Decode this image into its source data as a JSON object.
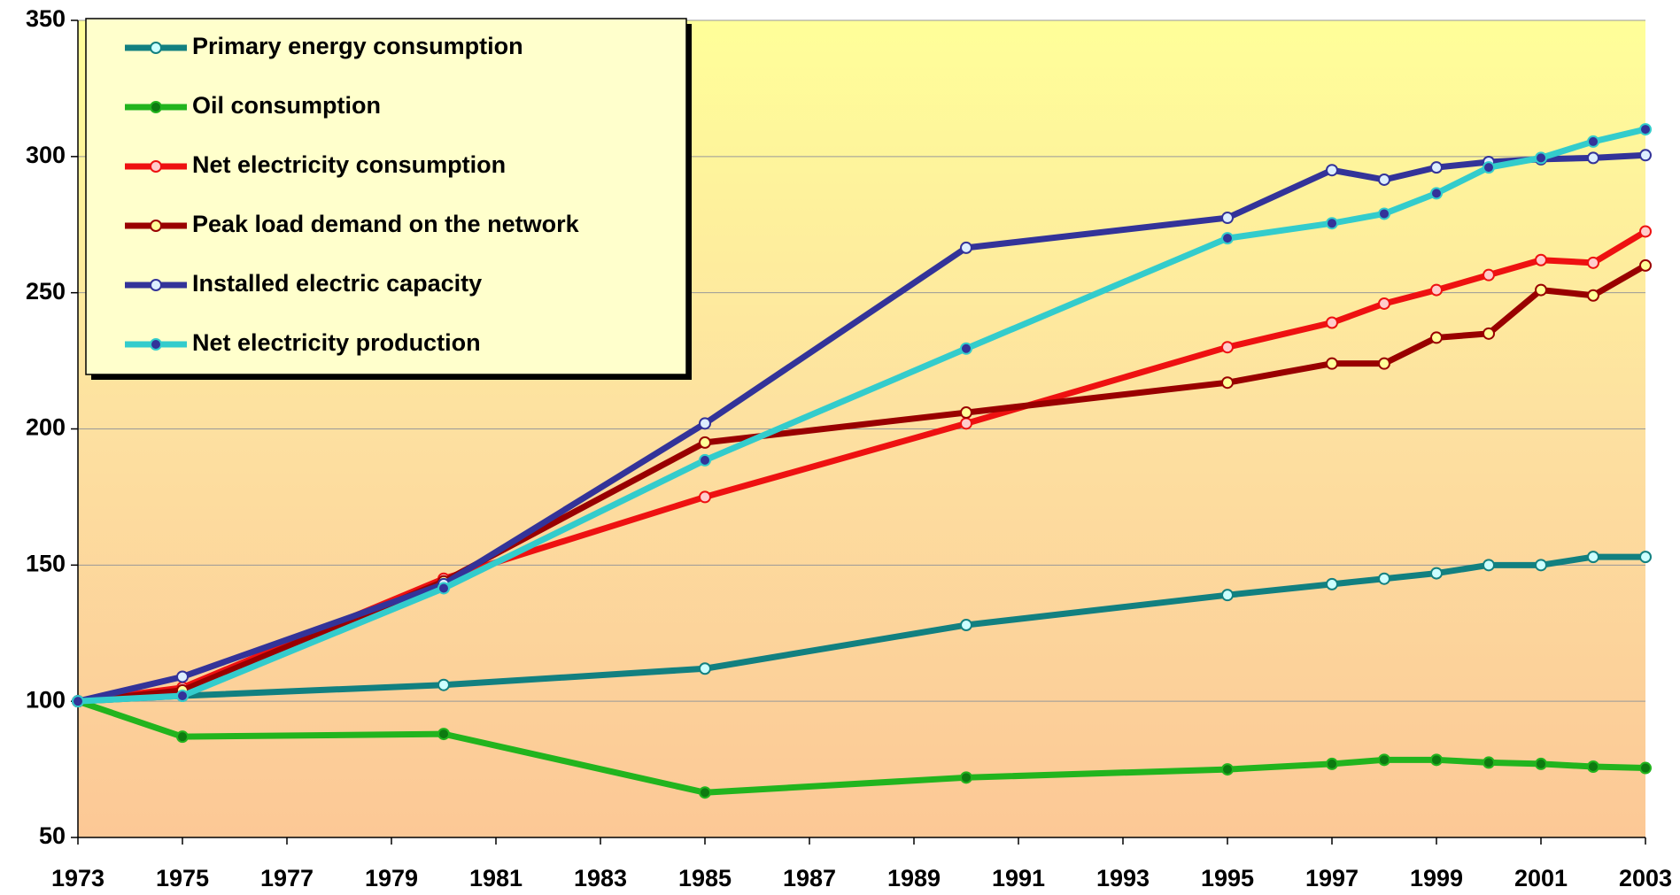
{
  "chart_data": {
    "type": "line",
    "x": [
      1973,
      1975,
      1980,
      1985,
      1990,
      1995,
      1997,
      1998,
      1999,
      2000,
      2001,
      2002,
      2003
    ],
    "series": [
      {
        "name": "Primary energy consumption",
        "color": "#128080",
        "marker_color": "#ccffff",
        "values": [
          100,
          102,
          106,
          112,
          128,
          139,
          143,
          145,
          147,
          150,
          150,
          153,
          153
        ]
      },
      {
        "name": "Oil consumption",
        "color": "#22b41e",
        "marker_color": "#0d7a10",
        "values": [
          100,
          87,
          88,
          66.5,
          72,
          75,
          77,
          78.5,
          78.5,
          77.5,
          77,
          76,
          75.5
        ]
      },
      {
        "name": "Net electricity consumption",
        "color": "#ee1111",
        "marker_color": "#ffcccc",
        "values": [
          100,
          105,
          145,
          175,
          202,
          230,
          239,
          246,
          251,
          256.5,
          262,
          261,
          272.5
        ]
      },
      {
        "name": "Peak load demand on the network",
        "color": "#990000",
        "marker_color": "#ffff99",
        "values": [
          100,
          104,
          144,
          195,
          206,
          217,
          224,
          224,
          233.5,
          235,
          251,
          249,
          260
        ]
      },
      {
        "name": "Installed electric capacity",
        "color": "#333399",
        "marker_color": "#ddeeff",
        "values": [
          100,
          109,
          143,
          202,
          266.5,
          277.5,
          295,
          291.5,
          296,
          298,
          299,
          299.5,
          300.5
        ]
      },
      {
        "name": "Net electricity production",
        "color": "#33cccc",
        "marker_color": "#333399",
        "values": [
          100,
          102,
          141.5,
          188.5,
          229.5,
          270,
          275.5,
          279,
          286.5,
          296,
          299.5,
          305.5,
          310
        ]
      }
    ],
    "xlim": [
      1973,
      2003
    ],
    "xticks": [
      1973,
      1975,
      1977,
      1979,
      1981,
      1983,
      1985,
      1987,
      1989,
      1991,
      1993,
      1995,
      1997,
      1999,
      2001,
      2003
    ],
    "ylim": [
      50,
      350
    ],
    "yticks": [
      50,
      100,
      150,
      200,
      250,
      300,
      350
    ],
    "grid": true,
    "legend": "upper left"
  }
}
